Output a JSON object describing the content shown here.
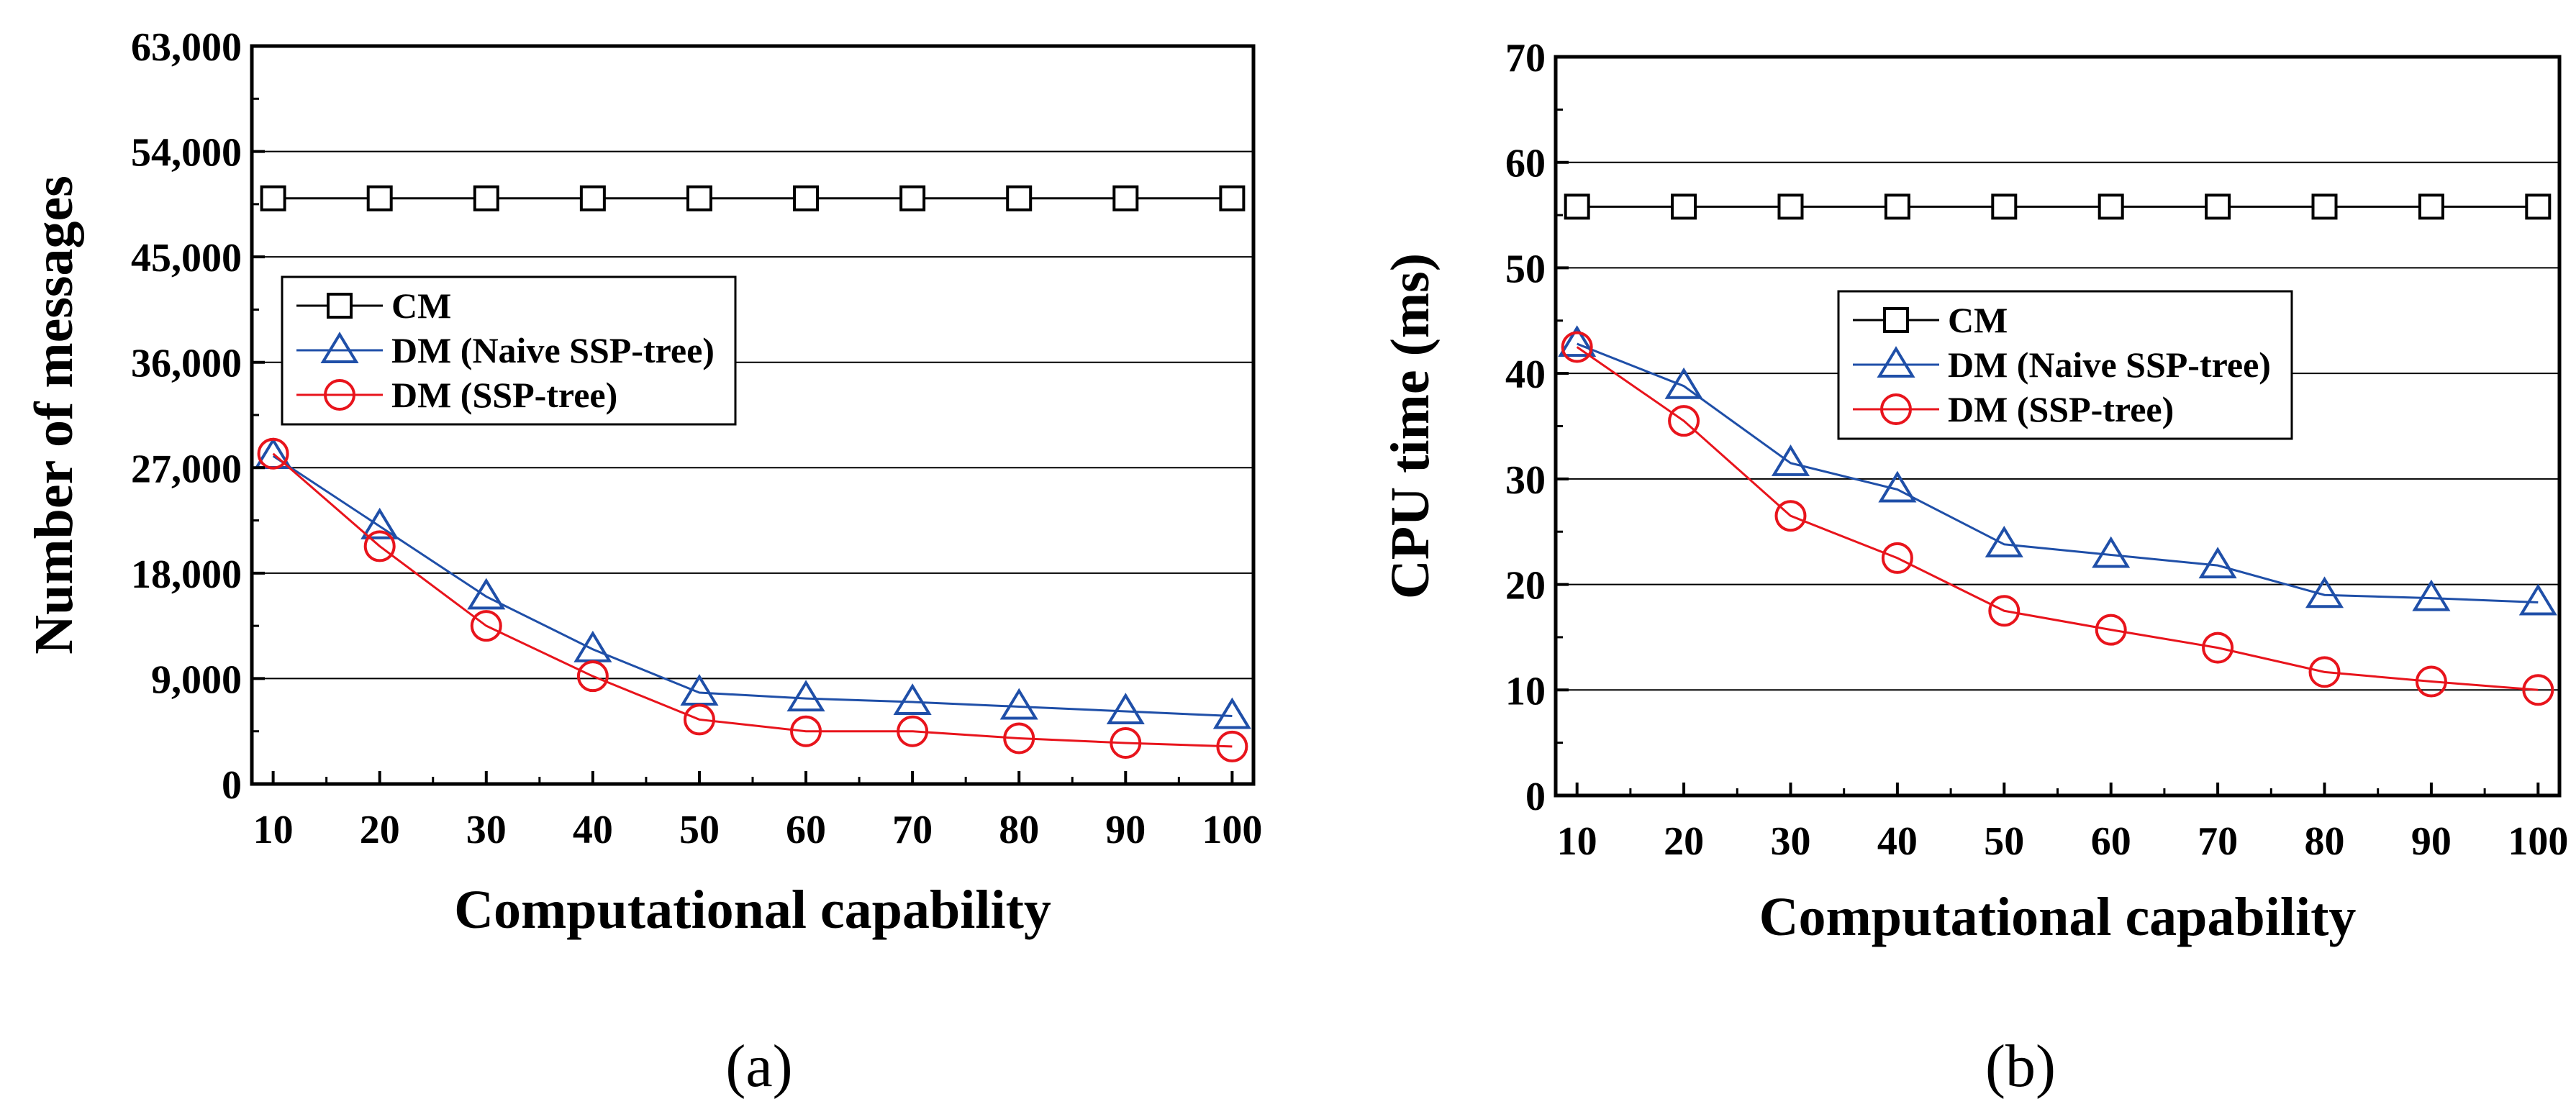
{
  "chart_data": [
    {
      "type": "line",
      "caption": "(a)",
      "xlabel": "Computational capability",
      "ylabel": "Number of messages",
      "x": [
        10,
        20,
        30,
        40,
        50,
        60,
        70,
        80,
        90,
        100
      ],
      "xlim": [
        8,
        102
      ],
      "ylim": [
        0,
        63000
      ],
      "yticks": [
        0,
        9000,
        18000,
        27000,
        36000,
        45000,
        54000,
        63000
      ],
      "ytick_labels": [
        "0",
        "9,000",
        "18,000",
        "27,000",
        "36,000",
        "45,000",
        "54,000",
        "63,000"
      ],
      "xtick_labels": [
        "10",
        "20",
        "30",
        "40",
        "50",
        "60",
        "70",
        "80",
        "90",
        "100"
      ],
      "grid": "horizontal",
      "legend_position": "middle-left",
      "series": [
        {
          "name": "CM",
          "marker": "square",
          "color": "#000000",
          "values": [
            50000,
            50000,
            50000,
            50000,
            50000,
            50000,
            50000,
            50000,
            50000,
            50000
          ]
        },
        {
          "name": "DM (Naive SSP-tree)",
          "marker": "triangle",
          "color": "#1f4fa8",
          "values": [
            28000,
            22000,
            16000,
            11500,
            7800,
            7300,
            7000,
            6600,
            6200,
            5800
          ]
        },
        {
          "name": "DM (SSP-tree)",
          "marker": "circle",
          "color": "#e8141c",
          "values": [
            28200,
            20300,
            13500,
            9200,
            5500,
            4500,
            4500,
            3900,
            3500,
            3200
          ]
        }
      ]
    },
    {
      "type": "line",
      "caption": "(b)",
      "xlabel": "Computational capability",
      "ylabel": "CPU time (ms)",
      "x": [
        10,
        20,
        30,
        40,
        50,
        60,
        70,
        80,
        90,
        100
      ],
      "xlim": [
        8,
        102
      ],
      "ylim": [
        0,
        70
      ],
      "yticks": [
        0,
        10,
        20,
        30,
        40,
        50,
        60,
        70
      ],
      "ytick_labels": [
        "0",
        "10",
        "20",
        "30",
        "40",
        "50",
        "60",
        "70"
      ],
      "xtick_labels": [
        "10",
        "20",
        "30",
        "40",
        "50",
        "60",
        "70",
        "80",
        "90",
        "100"
      ],
      "grid": "horizontal",
      "legend_position": "middle-center",
      "series": [
        {
          "name": "CM",
          "marker": "square",
          "color": "#000000",
          "values": [
            55.8,
            55.8,
            55.8,
            55.8,
            55.8,
            55.8,
            55.8,
            55.8,
            55.8,
            55.8
          ]
        },
        {
          "name": "DM (Naive SSP-tree)",
          "marker": "triangle",
          "color": "#1f4fa8",
          "values": [
            42.8,
            38.8,
            31.5,
            29.0,
            23.8,
            22.8,
            21.8,
            19.0,
            18.7,
            18.3
          ]
        },
        {
          "name": "DM (SSP-tree)",
          "marker": "circle",
          "color": "#e8141c",
          "values": [
            42.5,
            35.5,
            26.5,
            22.5,
            17.5,
            15.7,
            14.0,
            11.7,
            10.8,
            10.0
          ]
        }
      ]
    }
  ]
}
